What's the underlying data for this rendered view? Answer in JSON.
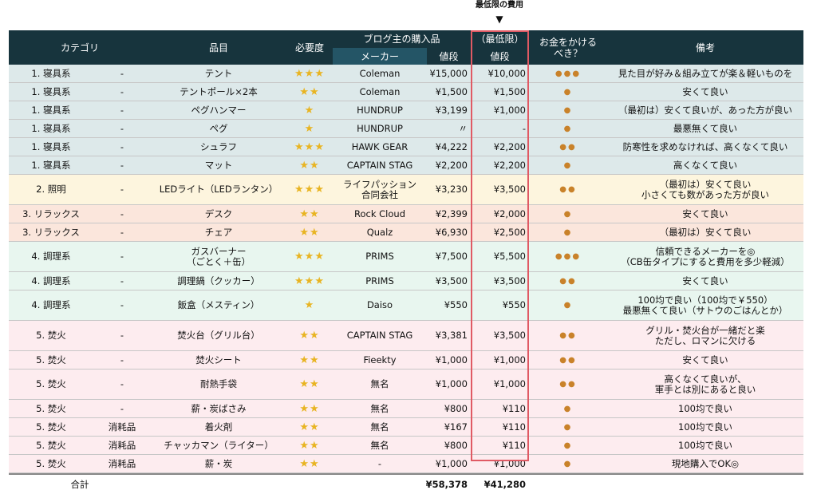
{
  "annotation": {
    "label": "最低限の費用",
    "arrow": "▼"
  },
  "header": {
    "category": "カテゴリ",
    "item": "品目",
    "need": "必要度",
    "blog_purchase": "ブログ主の購入品",
    "maker": "メーカー",
    "price": "値段",
    "min_top": "（最低限）",
    "min_price": "値段",
    "spend": "お金をかける\nべき？",
    "note": "備考"
  },
  "rows": [
    {
      "cat": "1. 寝具系",
      "sub": "-",
      "item": "テント",
      "stars": "★★★",
      "maker": "Coleman",
      "price": "¥15,000",
      "min": "¥10,000",
      "coins": "●●●",
      "note": "見た目が好み＆組み立てが楽＆軽いものを",
      "group": 1
    },
    {
      "cat": "1. 寝具系",
      "sub": "-",
      "item": "テントポール×2本",
      "stars": "★★",
      "maker": "Coleman",
      "price": "¥1,500",
      "min": "¥1,500",
      "coins": "●",
      "note": "安くて良い",
      "group": 1
    },
    {
      "cat": "1. 寝具系",
      "sub": "-",
      "item": "ペグハンマー",
      "stars": "★",
      "maker": "HUNDRUP",
      "price": "¥3,199",
      "min": "¥1,000",
      "coins": "●",
      "note": "（最初は）安くて良いが、あった方が良い",
      "group": 1
    },
    {
      "cat": "1. 寝具系",
      "sub": "-",
      "item": "ペグ",
      "stars": "★",
      "maker": "HUNDRUP",
      "price": "〃",
      "min": "-",
      "coins": "●",
      "note": "最悪無くて良い",
      "group": 1
    },
    {
      "cat": "1. 寝具系",
      "sub": "-",
      "item": "シュラフ",
      "stars": "★★★",
      "maker": "HAWK GEAR",
      "price": "¥4,222",
      "min": "¥2,200",
      "coins": "●●",
      "note": "防寒性を求めなければ、高くなくて良い",
      "group": 1
    },
    {
      "cat": "1. 寝具系",
      "sub": "-",
      "item": "マット",
      "stars": "★★",
      "maker": "CAPTAIN STAG",
      "price": "¥2,200",
      "min": "¥2,200",
      "coins": "●",
      "note": "高くなくて良い",
      "group": 1
    },
    {
      "cat": "2. 照明",
      "sub": "-",
      "item": "LEDライト（LEDランタン）",
      "stars": "★★★",
      "maker": "ライフパッション\n合同会社",
      "price": "¥3,230",
      "min": "¥3,500",
      "coins": "●●",
      "note": "（最初は）安くて良い\n小さくても数があった方が良い",
      "group": 2
    },
    {
      "cat": "3. リラックス",
      "sub": "-",
      "item": "デスク",
      "stars": "★★",
      "maker": "Rock Cloud",
      "price": "¥2,399",
      "min": "¥2,000",
      "coins": "●",
      "note": "安くて良い",
      "group": 3
    },
    {
      "cat": "3. リラックス",
      "sub": "-",
      "item": "チェア",
      "stars": "★★",
      "maker": "Qualz",
      "price": "¥6,930",
      "min": "¥2,500",
      "coins": "●",
      "note": "（最初は）安くて良い",
      "group": 3
    },
    {
      "cat": "4. 調理系",
      "sub": "-",
      "item": "ガスバーナー\n（ごとく＋缶）",
      "stars": "★★★",
      "maker": "PRIMS",
      "price": "¥7,500",
      "min": "¥5,500",
      "coins": "●●●",
      "note": "信頼できるメーカーを◎\n（CB缶タイプにすると費用を多少軽減）",
      "group": 4
    },
    {
      "cat": "4. 調理系",
      "sub": "-",
      "item": "調理鍋（クッカー）",
      "stars": "★★★",
      "maker": "PRIMS",
      "price": "¥3,500",
      "min": "¥3,500",
      "coins": "●●",
      "note": "安くて良い",
      "group": 4
    },
    {
      "cat": "4. 調理系",
      "sub": "-",
      "item": "飯盒（メスティン）",
      "stars": "★",
      "maker": "Daiso",
      "price": "¥550",
      "min": "¥550",
      "coins": "●",
      "note": "100均で良い（100均で￥550）\n最悪無くて良い（サトウのごはんとか）",
      "group": 4
    },
    {
      "cat": "5. 焚火",
      "sub": "-",
      "item": "焚火台（グリル台）",
      "stars": "★★",
      "maker": "CAPTAIN STAG",
      "price": "¥3,381",
      "min": "¥3,500",
      "coins": "●●",
      "note": "グリル・焚火台が一緒だと楽\nただし、ロマンに欠ける",
      "group": 5
    },
    {
      "cat": "5. 焚火",
      "sub": "-",
      "item": "焚火シート",
      "stars": "★★",
      "maker": "Fieekty",
      "price": "¥1,000",
      "min": "¥1,000",
      "coins": "●●",
      "note": "安くて良い",
      "group": 5
    },
    {
      "cat": "5. 焚火",
      "sub": "-",
      "item": "耐熱手袋",
      "stars": "★★",
      "maker": "無名",
      "price": "¥1,000",
      "min": "¥1,000",
      "coins": "●●",
      "note": "高くなくて良いが、\n軍手とは別にあると良い",
      "group": 5
    },
    {
      "cat": "5. 焚火",
      "sub": "-",
      "item": "薪・炭ばさみ",
      "stars": "★★",
      "maker": "無名",
      "price": "¥800",
      "min": "¥110",
      "coins": "●",
      "note": "100均で良い",
      "group": 5
    },
    {
      "cat": "5. 焚火",
      "sub": "消耗品",
      "item": "着火剤",
      "stars": "★★",
      "maker": "無名",
      "price": "¥167",
      "min": "¥110",
      "coins": "●",
      "note": "100均で良い",
      "group": 5
    },
    {
      "cat": "5. 焚火",
      "sub": "消耗品",
      "item": "チャッカマン（ライター）",
      "stars": "★★",
      "maker": "無名",
      "price": "¥800",
      "min": "¥110",
      "coins": "●",
      "note": "100均で良い",
      "group": 5
    },
    {
      "cat": "5. 焚火",
      "sub": "消耗品",
      "item": "薪・炭",
      "stars": "★★",
      "maker": "-",
      "price": "¥1,000",
      "min": "¥1,000",
      "coins": "●",
      "note": "現地購入でOK◎",
      "group": 5
    }
  ],
  "total": {
    "label": "合計",
    "price": "¥58,378",
    "min": "¥41,280"
  },
  "colors": {
    "header": "#17343d",
    "header_sub": "#245566",
    "min_box": "#e05a64",
    "star": "#e8b422",
    "coin": "#c9822a"
  }
}
